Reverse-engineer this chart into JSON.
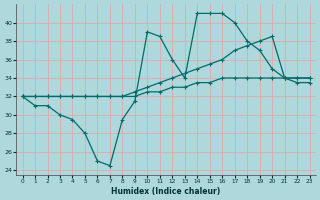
{
  "xlabel": "Humidex (Indice chaleur)",
  "background_color": "#aed8dc",
  "grid_color": "#e8a0a0",
  "line_color": "#006b6b",
  "xlim": [
    -0.5,
    23.5
  ],
  "ylim": [
    23.5,
    42
  ],
  "yticks": [
    24,
    26,
    28,
    30,
    32,
    34,
    36,
    38,
    40
  ],
  "xticks": [
    0,
    1,
    2,
    3,
    4,
    5,
    6,
    7,
    8,
    9,
    10,
    11,
    12,
    13,
    14,
    15,
    16,
    17,
    18,
    19,
    20,
    21,
    22,
    23
  ],
  "series1_x": [
    0,
    1,
    2,
    3,
    4,
    5,
    6,
    7,
    8,
    9,
    10,
    11,
    12,
    13,
    14,
    15,
    16,
    17,
    18,
    19,
    20,
    21,
    22,
    23
  ],
  "series1_y": [
    32,
    31,
    31,
    30,
    29.5,
    28,
    25,
    24.5,
    29.5,
    31.5,
    39,
    38.5,
    36,
    34,
    41,
    41,
    41,
    40,
    38,
    37,
    35,
    34,
    34,
    34
  ],
  "series2_x": [
    0,
    1,
    2,
    3,
    4,
    5,
    6,
    7,
    8,
    9,
    10,
    11,
    12,
    13,
    14,
    15,
    16,
    17,
    18,
    19,
    20,
    21,
    22,
    23
  ],
  "series2_y": [
    32,
    32,
    32,
    32,
    32,
    32,
    32,
    32,
    32,
    32.5,
    33,
    33.5,
    34,
    34.5,
    35,
    35.5,
    36,
    37,
    37.5,
    38,
    38.5,
    34,
    33.5,
    33.5
  ],
  "series3_x": [
    0,
    1,
    2,
    3,
    4,
    5,
    6,
    7,
    8,
    9,
    10,
    11,
    12,
    13,
    14,
    15,
    16,
    17,
    18,
    19,
    20,
    21,
    22,
    23
  ],
  "series3_y": [
    32,
    32,
    32,
    32,
    32,
    32,
    32,
    32,
    32,
    32,
    32.5,
    32.5,
    33,
    33,
    33.5,
    33.5,
    34,
    34,
    34,
    34,
    34,
    34,
    34,
    34
  ]
}
